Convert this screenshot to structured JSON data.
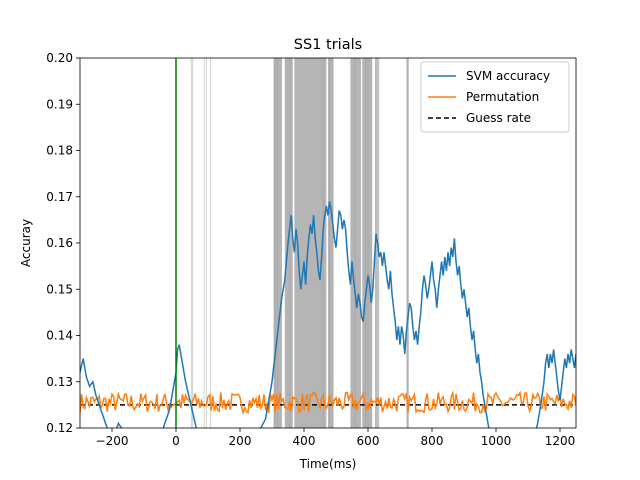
{
  "chart_data": {
    "type": "line",
    "title": "SS1 trials",
    "xlabel": "Time(ms)",
    "ylabel": "Accuray",
    "xlim": [
      -300,
      1250
    ],
    "ylim": [
      0.12,
      0.2
    ],
    "xticks": [
      -200,
      0,
      200,
      400,
      600,
      800,
      1000,
      1200
    ],
    "yticks": [
      0.12,
      0.13,
      0.14,
      0.15,
      0.16,
      0.17,
      0.18,
      0.19,
      0.2
    ],
    "xtick_labels": [
      "−200",
      "0",
      "200",
      "400",
      "600",
      "800",
      "1000",
      "1200"
    ],
    "ytick_labels": [
      "0.12",
      "0.13",
      "0.14",
      "0.15",
      "0.16",
      "0.17",
      "0.18",
      "0.19",
      "0.20"
    ],
    "legend_position": "upper-right",
    "grid": false,
    "onset_line": {
      "x": 0,
      "color": "#007f00"
    },
    "guess_rate": {
      "name": "Guess rate",
      "y": 0.125,
      "color": "#000000",
      "style": "dashed"
    },
    "series": [
      {
        "name": "SVM accuracy",
        "color": "#1f77b4",
        "points": [
          [
            -300,
            0.132
          ],
          [
            -290,
            0.135
          ],
          [
            -280,
            0.131
          ],
          [
            -270,
            0.129
          ],
          [
            -260,
            0.13
          ],
          [
            -250,
            0.127
          ],
          [
            -240,
            0.125
          ],
          [
            -230,
            0.123
          ],
          [
            -220,
            0.121
          ],
          [
            -210,
            0.119
          ],
          [
            -200,
            0.118
          ],
          [
            -190,
            0.119
          ],
          [
            -180,
            0.121
          ],
          [
            -170,
            0.12
          ],
          [
            -160,
            0.119
          ],
          [
            -150,
            0.118
          ],
          [
            -100,
            0.117
          ],
          [
            -60,
            0.118
          ],
          [
            -40,
            0.12
          ],
          [
            -20,
            0.124
          ],
          [
            -10,
            0.128
          ],
          [
            0,
            0.132
          ],
          [
            5,
            0.137
          ],
          [
            10,
            0.138
          ],
          [
            20,
            0.134
          ],
          [
            30,
            0.13
          ],
          [
            40,
            0.127
          ],
          [
            50,
            0.124
          ],
          [
            60,
            0.121
          ],
          [
            70,
            0.118
          ],
          [
            100,
            0.116
          ],
          [
            150,
            0.115
          ],
          [
            200,
            0.116
          ],
          [
            250,
            0.118
          ],
          [
            280,
            0.122
          ],
          [
            300,
            0.13
          ],
          [
            310,
            0.136
          ],
          [
            320,
            0.142
          ],
          [
            330,
            0.148
          ],
          [
            340,
            0.152
          ],
          [
            345,
            0.156
          ],
          [
            350,
            0.16
          ],
          [
            355,
            0.163
          ],
          [
            360,
            0.166
          ],
          [
            365,
            0.161
          ],
          [
            370,
            0.158
          ],
          [
            375,
            0.163
          ],
          [
            380,
            0.16
          ],
          [
            385,
            0.154
          ],
          [
            390,
            0.15
          ],
          [
            395,
            0.153
          ],
          [
            400,
            0.156
          ],
          [
            405,
            0.151
          ],
          [
            410,
            0.157
          ],
          [
            415,
            0.161
          ],
          [
            420,
            0.164
          ],
          [
            425,
            0.162
          ],
          [
            430,
            0.166
          ],
          [
            435,
            0.161
          ],
          [
            440,
            0.158
          ],
          [
            445,
            0.154
          ],
          [
            450,
            0.152
          ],
          [
            455,
            0.157
          ],
          [
            460,
            0.163
          ],
          [
            465,
            0.166
          ],
          [
            470,
            0.168
          ],
          [
            475,
            0.166
          ],
          [
            480,
            0.169
          ],
          [
            485,
            0.167
          ],
          [
            490,
            0.164
          ],
          [
            495,
            0.161
          ],
          [
            500,
            0.159
          ],
          [
            505,
            0.163
          ],
          [
            510,
            0.167
          ],
          [
            515,
            0.166
          ],
          [
            520,
            0.163
          ],
          [
            525,
            0.165
          ],
          [
            530,
            0.163
          ],
          [
            535,
            0.158
          ],
          [
            540,
            0.154
          ],
          [
            545,
            0.151
          ],
          [
            550,
            0.156
          ],
          [
            555,
            0.152
          ],
          [
            560,
            0.149
          ],
          [
            565,
            0.146
          ],
          [
            570,
            0.149
          ],
          [
            575,
            0.147
          ],
          [
            580,
            0.144
          ],
          [
            585,
            0.143
          ],
          [
            590,
            0.147
          ],
          [
            595,
            0.15
          ],
          [
            600,
            0.153
          ],
          [
            605,
            0.151
          ],
          [
            610,
            0.147
          ],
          [
            615,
            0.15
          ],
          [
            620,
            0.156
          ],
          [
            625,
            0.162
          ],
          [
            630,
            0.16
          ],
          [
            635,
            0.157
          ],
          [
            640,
            0.158
          ],
          [
            645,
            0.155
          ],
          [
            650,
            0.158
          ],
          [
            655,
            0.155
          ],
          [
            660,
            0.152
          ],
          [
            665,
            0.15
          ],
          [
            670,
            0.154
          ],
          [
            675,
            0.149
          ],
          [
            680,
            0.146
          ],
          [
            685,
            0.143
          ],
          [
            690,
            0.139
          ],
          [
            695,
            0.142
          ],
          [
            700,
            0.138
          ],
          [
            705,
            0.142
          ],
          [
            710,
            0.14
          ],
          [
            715,
            0.136
          ],
          [
            720,
            0.141
          ],
          [
            725,
            0.144
          ],
          [
            730,
            0.147
          ],
          [
            735,
            0.146
          ],
          [
            740,
            0.142
          ],
          [
            745,
            0.139
          ],
          [
            750,
            0.141
          ],
          [
            755,
            0.138
          ],
          [
            760,
            0.142
          ],
          [
            765,
            0.145
          ],
          [
            770,
            0.15
          ],
          [
            775,
            0.153
          ],
          [
            780,
            0.151
          ],
          [
            785,
            0.148
          ],
          [
            790,
            0.15
          ],
          [
            795,
            0.153
          ],
          [
            800,
            0.156
          ],
          [
            805,
            0.152
          ],
          [
            810,
            0.15
          ],
          [
            815,
            0.146
          ],
          [
            820,
            0.15
          ],
          [
            825,
            0.153
          ],
          [
            830,
            0.156
          ],
          [
            835,
            0.153
          ],
          [
            840,
            0.157
          ],
          [
            845,
            0.154
          ],
          [
            850,
            0.158
          ],
          [
            855,
            0.155
          ],
          [
            860,
            0.159
          ],
          [
            865,
            0.157
          ],
          [
            870,
            0.161
          ],
          [
            875,
            0.156
          ],
          [
            880,
            0.153
          ],
          [
            885,
            0.155
          ],
          [
            890,
            0.151
          ],
          [
            895,
            0.148
          ],
          [
            900,
            0.15
          ],
          [
            905,
            0.147
          ],
          [
            910,
            0.144
          ],
          [
            915,
            0.146
          ],
          [
            920,
            0.142
          ],
          [
            925,
            0.139
          ],
          [
            930,
            0.141
          ],
          [
            935,
            0.137
          ],
          [
            940,
            0.134
          ],
          [
            945,
            0.136
          ],
          [
            950,
            0.132
          ],
          [
            955,
            0.13
          ],
          [
            960,
            0.127
          ],
          [
            965,
            0.125
          ],
          [
            970,
            0.123
          ],
          [
            975,
            0.121
          ],
          [
            980,
            0.119
          ],
          [
            990,
            0.117
          ],
          [
            1000,
            0.116
          ],
          [
            1050,
            0.115
          ],
          [
            1100,
            0.116
          ],
          [
            1120,
            0.118
          ],
          [
            1130,
            0.121
          ],
          [
            1140,
            0.125
          ],
          [
            1150,
            0.13
          ],
          [
            1155,
            0.134
          ],
          [
            1160,
            0.136
          ],
          [
            1165,
            0.133
          ],
          [
            1170,
            0.136
          ],
          [
            1175,
            0.134
          ],
          [
            1180,
            0.137
          ],
          [
            1185,
            0.134
          ],
          [
            1190,
            0.131
          ],
          [
            1195,
            0.128
          ],
          [
            1200,
            0.126
          ],
          [
            1205,
            0.129
          ],
          [
            1210,
            0.132
          ],
          [
            1215,
            0.135
          ],
          [
            1220,
            0.133
          ],
          [
            1225,
            0.136
          ],
          [
            1230,
            0.134
          ],
          [
            1235,
            0.137
          ],
          [
            1240,
            0.135
          ],
          [
            1245,
            0.133
          ],
          [
            1250,
            0.136
          ]
        ]
      },
      {
        "name": "Permutation",
        "color": "#ff7f0e",
        "mean": 0.1255,
        "amplitude": 0.0022,
        "x_step": 5
      }
    ],
    "shaded_regions": [
      {
        "x": [
          305,
          330
        ],
        "color": "#b5b5b5"
      },
      {
        "x": [
          340,
          365
        ],
        "color": "#b5b5b5"
      },
      {
        "x": [
          370,
          470
        ],
        "color": "#b5b5b5"
      },
      {
        "x": [
          475,
          492
        ],
        "color": "#b5b5b5"
      },
      {
        "x": [
          545,
          578
        ],
        "color": "#b5b5b5"
      },
      {
        "x": [
          582,
          612
        ],
        "color": "#b5b5b5"
      },
      {
        "x": [
          622,
          635
        ],
        "color": "#c4c4c4"
      },
      {
        "x": [
          720,
          728
        ],
        "color": "#c4c4c4"
      }
    ],
    "faint_lines": [
      48,
      52,
      88,
      95,
      108,
      310,
      318,
      330,
      355,
      460,
      480,
      490,
      560,
      592,
      600,
      612,
      625,
      723
    ]
  }
}
